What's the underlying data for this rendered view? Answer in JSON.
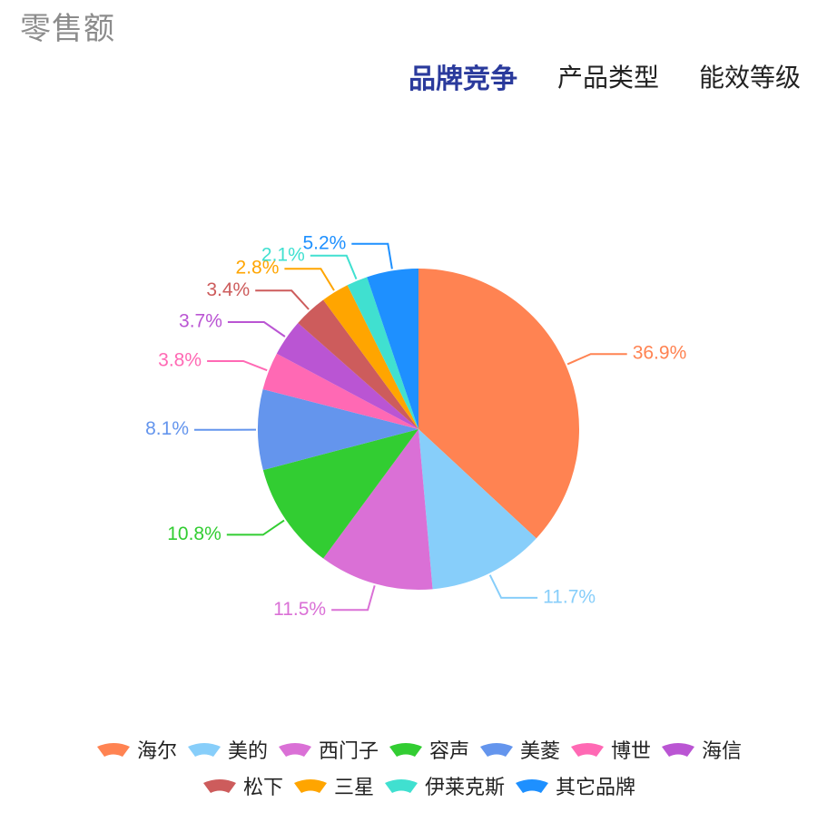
{
  "header": {
    "title": "零售额"
  },
  "tabs": [
    {
      "label": "品牌竞争",
      "active": true
    },
    {
      "label": "产品类型",
      "active": false
    },
    {
      "label": "能效等级",
      "active": false
    }
  ],
  "chart_data": {
    "type": "pie",
    "title": "",
    "value_format": "percent",
    "start_angle_deg": 0,
    "direction": "clockwise",
    "slices": [
      {
        "name": "海尔",
        "value": 36.9,
        "label": "36.9%",
        "color": "#FF8352"
      },
      {
        "name": "美的",
        "value": 11.7,
        "label": "11.7%",
        "color": "#87CEFA"
      },
      {
        "name": "西门子",
        "value": 11.5,
        "label": "11.5%",
        "color": "#DA70D6"
      },
      {
        "name": "容声",
        "value": 10.8,
        "label": "10.8%",
        "color": "#32CD32"
      },
      {
        "name": "美菱",
        "value": 8.1,
        "label": "8.1%",
        "color": "#6495ED"
      },
      {
        "name": "博世",
        "value": 3.8,
        "label": "3.8%",
        "color": "#FF69B4"
      },
      {
        "name": "海信",
        "value": 3.7,
        "label": "3.7%",
        "color": "#BA55D3"
      },
      {
        "name": "松下",
        "value": 3.4,
        "label": "3.4%",
        "color": "#CD5C5C"
      },
      {
        "name": "三星",
        "value": 2.8,
        "label": "2.8%",
        "color": "#FFA500"
      },
      {
        "name": "伊莱克斯",
        "value": 2.1,
        "label": "2.1%",
        "color": "#40E0D0"
      },
      {
        "name": "其它品牌",
        "value": 5.2,
        "label": "5.2%",
        "color": "#1E90FF"
      }
    ],
    "legend": {
      "position": "bottom",
      "rows": [
        [
          "海尔",
          "美的",
          "西门子",
          "容声",
          "美菱",
          "博世",
          "海信"
        ],
        [
          "松下",
          "三星",
          "伊莱克斯",
          "其它品牌"
        ]
      ]
    }
  }
}
